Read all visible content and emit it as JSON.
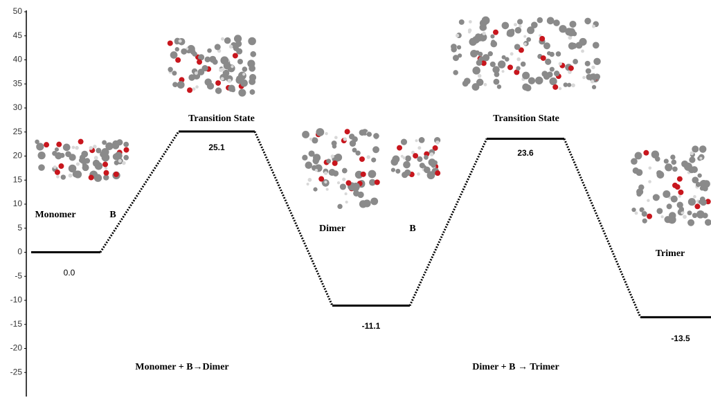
{
  "chart_data": {
    "type": "energy_profile",
    "values": [
      0.0,
      25.1,
      -11.1,
      23.6,
      -13.5
    ],
    "value_labels": [
      "0.0",
      "25.1",
      "-11.1",
      "23.6",
      "-13.5"
    ],
    "annotations": [
      "Monomer",
      "B",
      "Transition State",
      "Dimer",
      "B",
      "Transition State",
      "Trimer",
      "Monomer + B→Dimer",
      "Dimer + B → Trimer"
    ],
    "color": "#000000",
    "ylim": [
      -30,
      50
    ],
    "yticks": [
      -25,
      -20,
      -15,
      -10,
      -5,
      0,
      5,
      10,
      15,
      20,
      25,
      30,
      35,
      40,
      45,
      50
    ]
  }
}
